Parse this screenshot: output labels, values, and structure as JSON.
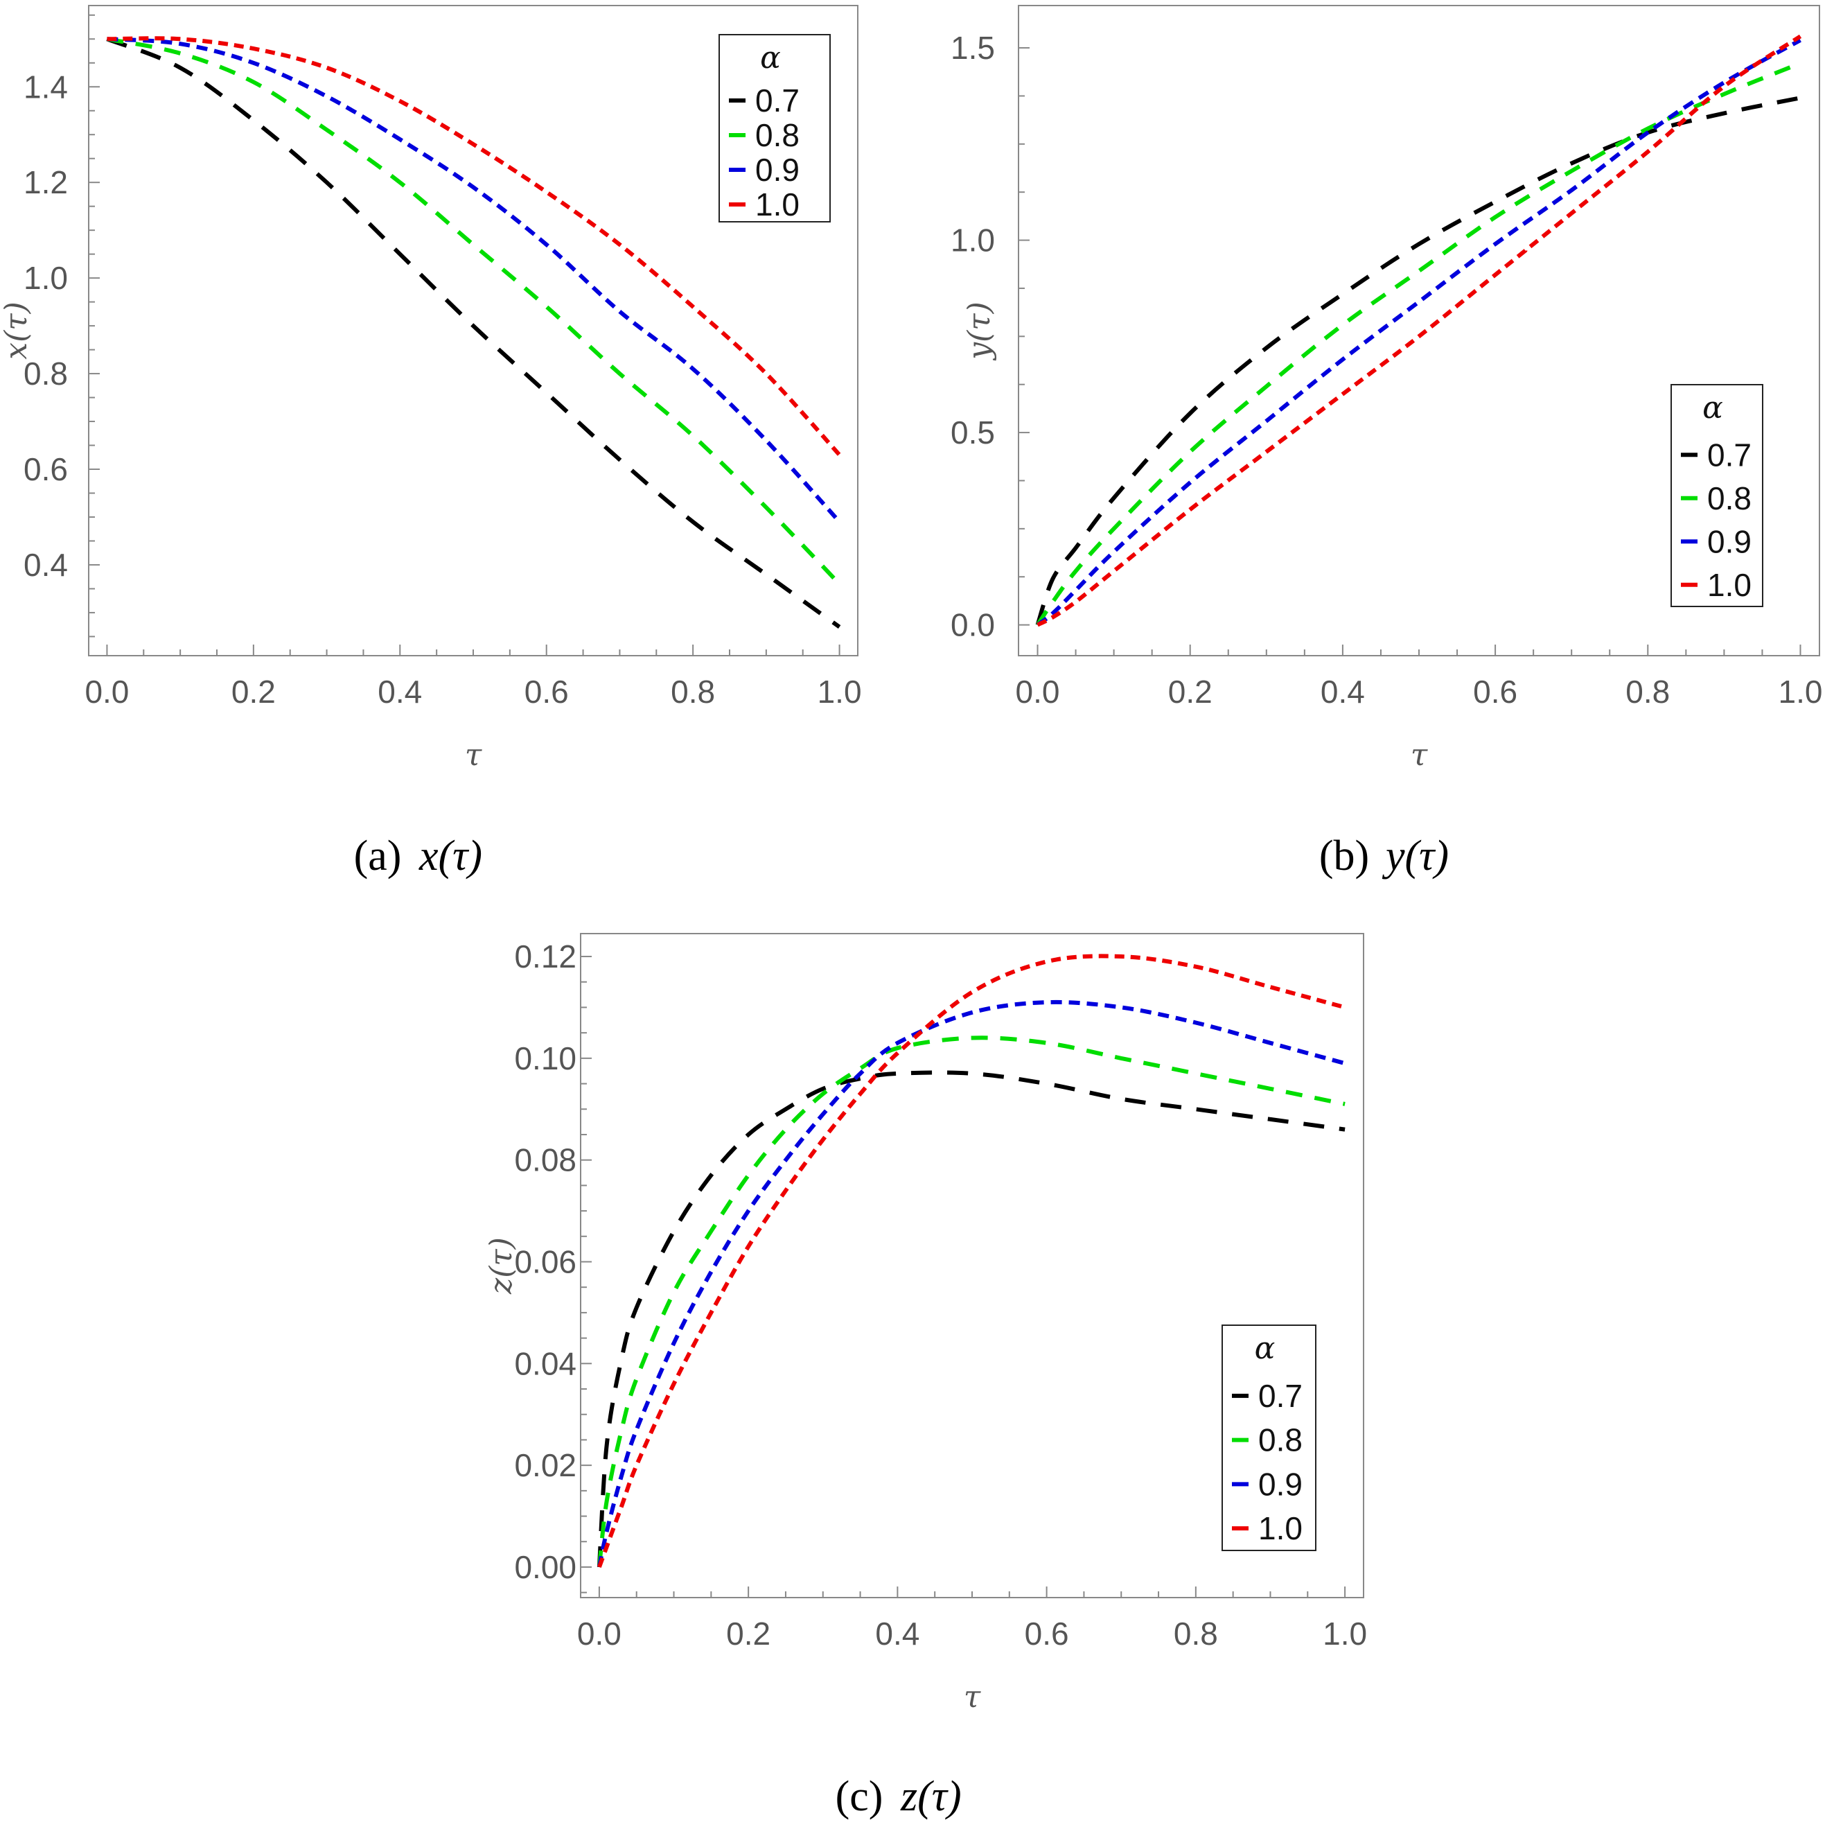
{
  "chart_data": [
    {
      "id": "a",
      "type": "line",
      "xlabel": "τ",
      "ylabel": "x(τ)",
      "caption_label": "(a)",
      "caption_math": "x(τ)",
      "xlim": [
        -0.025,
        1.025
      ],
      "ylim": [
        0.21,
        1.57
      ],
      "xticks": [
        0.0,
        0.2,
        0.4,
        0.6,
        0.8,
        1.0
      ],
      "xtick_labels": [
        "0.0",
        "0.2",
        "0.4",
        "0.6",
        "0.8",
        "1.0"
      ],
      "yticks": [
        0.4,
        0.6,
        0.8,
        1.0,
        1.2,
        1.4
      ],
      "ytick_labels": [
        "0.4",
        "0.6",
        "0.8",
        "1.0",
        "1.2",
        "1.4"
      ],
      "legend_title": "α",
      "legend_position": "top-right",
      "x": [
        0.0,
        0.1,
        0.2,
        0.3,
        0.4,
        0.5,
        0.6,
        0.7,
        0.8,
        0.9,
        1.0
      ],
      "series": [
        {
          "name": "0.7",
          "color": "#000000",
          "values": [
            1.5,
            1.44,
            1.33,
            1.2,
            1.05,
            0.9,
            0.76,
            0.62,
            0.49,
            0.38,
            0.27
          ]
        },
        {
          "name": "0.8",
          "color": "#00dd00",
          "values": [
            1.5,
            1.47,
            1.41,
            1.31,
            1.2,
            1.07,
            0.94,
            0.8,
            0.67,
            0.52,
            0.36
          ]
        },
        {
          "name": "0.9",
          "color": "#0000dd",
          "values": [
            1.5,
            1.49,
            1.45,
            1.38,
            1.29,
            1.19,
            1.07,
            0.93,
            0.81,
            0.66,
            0.49
          ]
        },
        {
          "name": "1.0",
          "color": "#ee0000",
          "values": [
            1.5,
            1.5,
            1.48,
            1.44,
            1.37,
            1.28,
            1.18,
            1.07,
            0.94,
            0.8,
            0.63
          ]
        }
      ]
    },
    {
      "id": "b",
      "type": "line",
      "xlabel": "τ",
      "ylabel": "y(τ)",
      "caption_label": "(b)",
      "caption_math": "y(τ)",
      "xlim": [
        -0.025,
        1.025
      ],
      "ylim": [
        -0.08,
        1.61
      ],
      "xticks": [
        0.0,
        0.2,
        0.4,
        0.6,
        0.8,
        1.0
      ],
      "xtick_labels": [
        "0.0",
        "0.2",
        "0.4",
        "0.6",
        "0.8",
        "1.0"
      ],
      "yticks": [
        0.0,
        0.5,
        1.0,
        1.5
      ],
      "ytick_labels": [
        "0.0",
        "0.5",
        "1.0",
        "1.5"
      ],
      "legend_title": "α",
      "legend_position": "bottom-right",
      "x": [
        0.0,
        0.02,
        0.05,
        0.1,
        0.2,
        0.3,
        0.4,
        0.5,
        0.6,
        0.7,
        0.8,
        0.9,
        1.0
      ],
      "series": [
        {
          "name": "0.7",
          "color": "#000000",
          "values": [
            0.0,
            0.12,
            0.2,
            0.33,
            0.55,
            0.72,
            0.86,
            0.99,
            1.1,
            1.2,
            1.28,
            1.33,
            1.37
          ]
        },
        {
          "name": "0.8",
          "color": "#00dd00",
          "values": [
            0.0,
            0.06,
            0.14,
            0.25,
            0.45,
            0.62,
            0.78,
            0.92,
            1.06,
            1.18,
            1.29,
            1.38,
            1.46
          ]
        },
        {
          "name": "0.9",
          "color": "#0000dd",
          "values": [
            0.0,
            0.03,
            0.09,
            0.19,
            0.37,
            0.53,
            0.69,
            0.84,
            0.99,
            1.13,
            1.28,
            1.41,
            1.52
          ]
        },
        {
          "name": "1.0",
          "color": "#ee0000",
          "values": [
            0.0,
            0.02,
            0.06,
            0.14,
            0.3,
            0.45,
            0.6,
            0.75,
            0.91,
            1.07,
            1.23,
            1.4,
            1.53
          ]
        }
      ]
    },
    {
      "id": "c",
      "type": "line",
      "xlabel": "τ",
      "ylabel": "z(τ)",
      "caption_label": "(c)",
      "caption_math": "z(τ)",
      "xlim": [
        -0.025,
        1.025
      ],
      "ylim": [
        -0.006,
        0.1245
      ],
      "xticks": [
        0.0,
        0.2,
        0.4,
        0.6,
        0.8,
        1.0
      ],
      "xtick_labels": [
        "0.0",
        "0.2",
        "0.4",
        "0.6",
        "0.8",
        "1.0"
      ],
      "yticks": [
        0.0,
        0.02,
        0.04,
        0.06,
        0.08,
        0.1,
        0.12
      ],
      "ytick_labels": [
        "0.00",
        "0.02",
        "0.04",
        "0.06",
        "0.08",
        "0.10",
        "0.12"
      ],
      "legend_title": "α",
      "legend_position": "bottom-right",
      "x": [
        0.0,
        0.01,
        0.03,
        0.05,
        0.1,
        0.15,
        0.2,
        0.25,
        0.3,
        0.35,
        0.4,
        0.5,
        0.6,
        0.7,
        0.8,
        0.9,
        1.0
      ],
      "series": [
        {
          "name": "0.7",
          "color": "#000000",
          "values": [
            0.0,
            0.024,
            0.041,
            0.051,
            0.066,
            0.077,
            0.085,
            0.09,
            0.094,
            0.096,
            0.097,
            0.097,
            0.095,
            0.092,
            0.09,
            0.088,
            0.086
          ]
        },
        {
          "name": "0.8",
          "color": "#00dd00",
          "values": [
            0.0,
            0.013,
            0.027,
            0.037,
            0.054,
            0.066,
            0.077,
            0.086,
            0.093,
            0.098,
            0.102,
            0.104,
            0.103,
            0.1,
            0.097,
            0.094,
            0.091
          ]
        },
        {
          "name": "0.9",
          "color": "#0000dd",
          "values": [
            0.0,
            0.007,
            0.018,
            0.027,
            0.044,
            0.058,
            0.07,
            0.08,
            0.089,
            0.097,
            0.103,
            0.109,
            0.111,
            0.11,
            0.107,
            0.103,
            0.099
          ]
        },
        {
          "name": "1.0",
          "color": "#ee0000",
          "values": [
            0.0,
            0.004,
            0.012,
            0.02,
            0.036,
            0.05,
            0.063,
            0.074,
            0.084,
            0.093,
            0.101,
            0.113,
            0.119,
            0.12,
            0.118,
            0.114,
            0.11
          ]
        }
      ]
    }
  ]
}
